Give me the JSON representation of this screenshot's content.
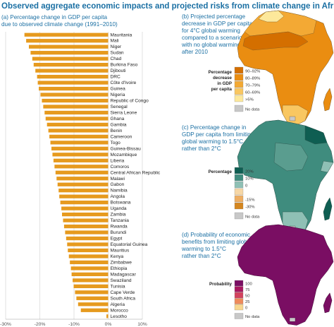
{
  "figure": {
    "title": "Observed aggregate economic impacts and projected risks from climate change in Africa"
  },
  "chart_data": [
    {
      "type": "bar",
      "orientation": "horizontal",
      "panel_title": [
        "(a) Percentage change in GDP per capita",
        "due to observed climate change (1991–2010)"
      ],
      "categories": [
        "Mauritania",
        "Mali",
        "Niger",
        "Sudan",
        "Chad",
        "Burkina Faso",
        "Djibouti",
        "DRC",
        "Côte d'Ivoire",
        "Guinea",
        "Nigeria",
        "Republic of Congo",
        "Senegal",
        "Sierra Leone",
        "Ghana",
        "Gambia",
        "Benin",
        "Cameroon",
        "Togo",
        "Guinea-Bissau",
        "Mozambique",
        "Liberia",
        "Comoros",
        "Central African Republic",
        "Malawi",
        "Gabon",
        "Namibia",
        "Angola",
        "Botswana",
        "Uganda",
        "Zambia",
        "Tanzania",
        "Rwanda",
        "Burundi",
        "Egypt",
        "Equatorial Guinea",
        "Mauritius",
        "Kenya",
        "Zimbabwe",
        "Ethiopia",
        "Madagascar",
        "Swaziland",
        "Tunisia",
        "Cape Verde",
        "South Africa",
        "Algeria",
        "Morocco",
        "Lesotho"
      ],
      "values": [
        -24.5,
        -24,
        -23.2,
        -22.7,
        -22.2,
        -21.8,
        -21.3,
        -20.8,
        -20.6,
        -20.3,
        -19.8,
        -19.4,
        -19,
        -18.6,
        -18.3,
        -17.9,
        -17.5,
        -17.2,
        -16.9,
        -16.6,
        -16.3,
        -16,
        -15.7,
        -15.4,
        -15.1,
        -14.8,
        -14.5,
        -14.3,
        -14,
        -13.7,
        -13.5,
        -13.2,
        -12.9,
        -12.6,
        -12.3,
        -12,
        -11.8,
        -11.5,
        -11.2,
        -10.9,
        -10.7,
        -10.4,
        -10.1,
        -9.7,
        -9.3,
        -8.8,
        -8,
        -0.5
      ],
      "bar_color": "#e69a1e",
      "xlim": [
        -30,
        10
      ],
      "xticks": [
        "-30%",
        "-20%",
        "-10%",
        "0%",
        "10%"
      ],
      "tick_values": [
        -30,
        -20,
        -10,
        0,
        10
      ],
      "gridlines": "vertical"
    },
    {
      "type": "choropleth",
      "panel_title": [
        "(b) Projected percentage",
        "decrease in GDP per capita",
        "for 4°C global warming",
        "compared to a scenario",
        "with no global warming",
        "after 2010"
      ],
      "legend_title": [
        "Percentage",
        "decrease",
        "in GDP",
        "per capita"
      ],
      "legend": [
        {
          "label": "90–92%",
          "color": "#d46f00"
        },
        {
          "label": "80–89%",
          "color": "#ea8d11"
        },
        {
          "label": "70–79%",
          "color": "#f3a934"
        },
        {
          "label": "60–69%",
          "color": "#f9c761"
        },
        {
          "label": ">5%",
          "color": "#fde89b"
        },
        {
          "label": "No data",
          "color": "#c8c8c8"
        }
      ]
    },
    {
      "type": "choropleth",
      "panel_title": [
        "(c) Percentage change in",
        "GDP per capita from limiting",
        "global warming to 1.5°C",
        "rather than 2°C"
      ],
      "legend_title": [
        "Percentage"
      ],
      "legend": [
        {
          "label": "20%",
          "color": "#0f5e52"
        },
        {
          "label": "10%",
          "color": "#3f8c7e"
        },
        {
          "label": "0",
          "color": "#8fc0b5"
        },
        {
          "label": "",
          "color": "#f6d7a6"
        },
        {
          "label": "-15%",
          "color": "#eeae62"
        },
        {
          "label": "-30%",
          "color": "#d4861f"
        },
        {
          "label": "No data",
          "color": "#c8c8c8"
        }
      ]
    },
    {
      "type": "choropleth",
      "panel_title": [
        "(d) Probability of economic",
        "benefits from limiting global",
        "warming to 1.5°C",
        "rather than 2°C"
      ],
      "legend_title": [
        "Probability"
      ],
      "legend": [
        {
          "label": "100",
          "color": "#7a0e63"
        },
        {
          "label": "75",
          "color": "#a8175f"
        },
        {
          "label": "50",
          "color": "#d2425e"
        },
        {
          "label": "25",
          "color": "#ee8a5a"
        },
        {
          "label": "0",
          "color": "#f8d68e"
        },
        {
          "label": "No data",
          "color": "#c8c8c8"
        }
      ]
    }
  ]
}
